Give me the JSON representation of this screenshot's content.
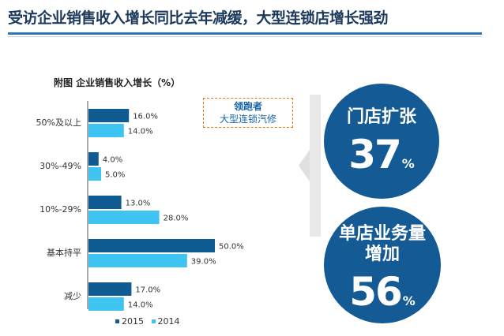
{
  "header": {
    "title": "受访企业销售收入增长同比去年减缓，大型连锁店增长强劲"
  },
  "colors": {
    "series_2015": "#115b93",
    "series_2014": "#3fc4f2",
    "circle": "#145a94",
    "title": "#1c3a5c"
  },
  "chart_data": {
    "type": "bar",
    "orientation": "horizontal",
    "title": "附图  企业销售收入增长（%）",
    "categories": [
      "50%及以上",
      "30%-49%",
      "10%-29%",
      "基本持平",
      "减少"
    ],
    "series": [
      {
        "name": "2015",
        "values": [
          16.0,
          4.0,
          13.0,
          50.0,
          17.0
        ],
        "labels": [
          "16.0%",
          "4.0%",
          "13.0%",
          "50.0%",
          "17.0%"
        ]
      },
      {
        "name": "2014",
        "values": [
          14.0,
          5.0,
          28.0,
          39.0,
          14.0
        ],
        "labels": [
          "14.0%",
          "5.0%",
          "28.0%",
          "39.0%",
          "14.0%"
        ]
      }
    ],
    "xlim": [
      0,
      50
    ],
    "grid": false,
    "legend_position": "bottom"
  },
  "callout": {
    "line1": "领跑者",
    "line2": "大型连锁汽修"
  },
  "stats": [
    {
      "label_lines": [
        "门店扩张"
      ],
      "value": "37",
      "unit": "%"
    },
    {
      "label_lines": [
        "单店业务量",
        "增加"
      ],
      "value": "56",
      "unit": "%"
    }
  ]
}
